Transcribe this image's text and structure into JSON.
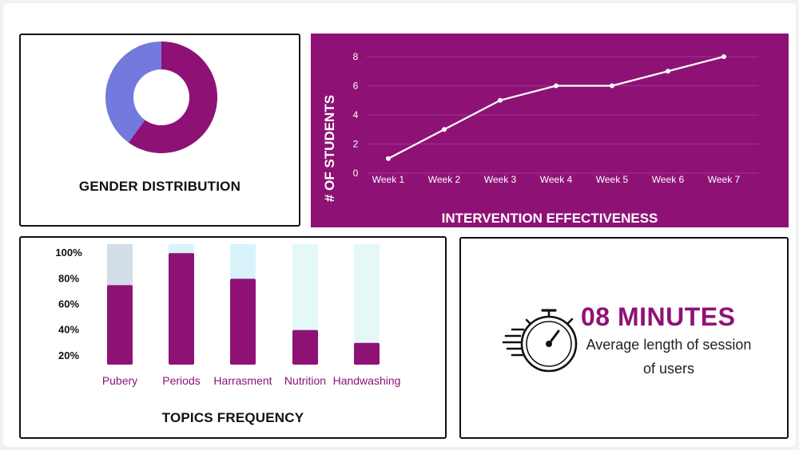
{
  "colors": {
    "purple": "#8e1276",
    "donut_blue": "#7379dd",
    "bar_track_1": "#d3dde7",
    "bar_track_2": "#d9f3fb",
    "bar_track_3": "#e5f8f8"
  },
  "gender": {
    "title": "GENDER DISTRIBUTION"
  },
  "intervention": {
    "title": "INTERVENTION EFFECTIVENESS",
    "ylabel": "# OF STUDENTS"
  },
  "topics": {
    "title": "TOPICS FREQUENCY"
  },
  "session": {
    "value": "08 MINUTES",
    "caption_line1": "Average length of session",
    "caption_line2": "of users",
    "icon": "stopwatch-icon"
  },
  "chart_data": [
    {
      "type": "pie",
      "variant": "donut",
      "title": "GENDER DISTRIBUTION",
      "slices": [
        {
          "value": 60,
          "color": "#8e1276"
        },
        {
          "value": 40,
          "color": "#7379dd"
        }
      ]
    },
    {
      "type": "line",
      "title": "INTERVENTION EFFECTIVENESS",
      "ylabel": "# OF STUDENTS",
      "xlabel": "",
      "categories": [
        "Week 1",
        "Week 2",
        "Week 3",
        "Week 4",
        "Week 5",
        "Week 6",
        "Week 7"
      ],
      "values": [
        1,
        3,
        5,
        6,
        6,
        7,
        8
      ],
      "yticks": [
        0,
        2,
        4,
        6,
        8
      ],
      "ylim": [
        0,
        8
      ],
      "grid": true
    },
    {
      "type": "bar",
      "title": "TOPICS FREQUENCY",
      "categories": [
        "Pubery",
        "Periods",
        "Harrasment",
        "Nutrition",
        "Handwashing"
      ],
      "values": [
        75,
        100,
        80,
        40,
        30
      ],
      "yticks": [
        "20%",
        "40%",
        "60%",
        "80%",
        "100%"
      ],
      "ytick_values": [
        20,
        40,
        60,
        80,
        100
      ],
      "ylim": [
        13,
        107
      ]
    }
  ]
}
